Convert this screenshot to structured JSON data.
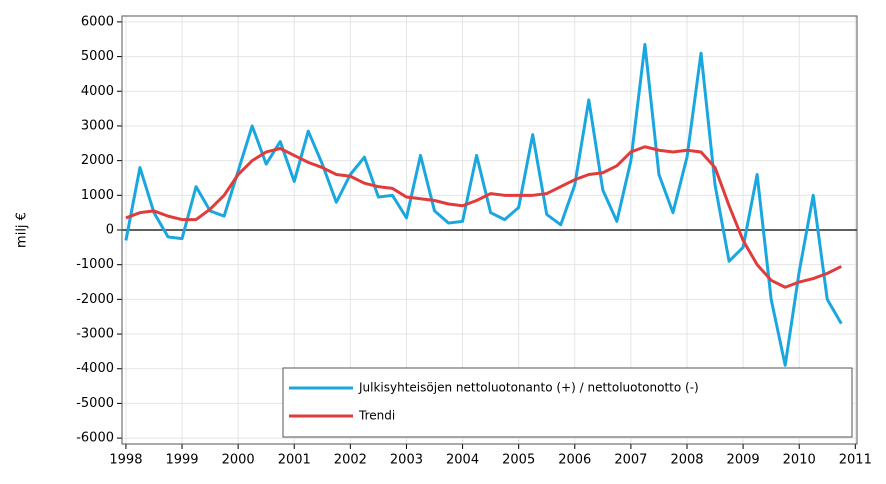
{
  "chart_data": {
    "type": "line",
    "y_label": "milj €",
    "x": [
      1998,
      1998.25,
      1998.5,
      1998.75,
      1999,
      1999.25,
      1999.5,
      1999.75,
      2000,
      2000.25,
      2000.5,
      2000.75,
      2001,
      2001.25,
      2001.5,
      2001.75,
      2002,
      2002.25,
      2002.5,
      2002.75,
      2003,
      2003.25,
      2003.5,
      2003.75,
      2004,
      2004.25,
      2004.5,
      2004.75,
      2005,
      2005.25,
      2005.5,
      2005.75,
      2006,
      2006.25,
      2006.5,
      2006.75,
      2007,
      2007.25,
      2007.5,
      2007.75,
      2008,
      2008.25,
      2008.5,
      2008.75,
      2009,
      2009.25,
      2009.5,
      2009.75,
      2010,
      2010.25,
      2010.5,
      2010.75
    ],
    "series": [
      {
        "name": "Julkisyhteisöjen nettoluotonanto (+) / nettoluotonotto (-)",
        "color": "#1aa7e0",
        "values": [
          -300,
          1800,
          500,
          -200,
          -250,
          1250,
          550,
          400,
          1700,
          3000,
          1900,
          2550,
          1400,
          2850,
          1900,
          800,
          1600,
          2100,
          950,
          1000,
          350,
          2150,
          550,
          200,
          250,
          2150,
          500,
          300,
          650,
          2750,
          450,
          150,
          1300,
          3750,
          1150,
          250,
          2000,
          5350,
          1600,
          500,
          2100,
          5100,
          1300,
          -900,
          -500,
          1600,
          -2000,
          -3900,
          -1200,
          1000,
          -2000,
          -2700
        ]
      },
      {
        "name": "Trendi",
        "color": "#e03c3c",
        "values": [
          350,
          500,
          550,
          400,
          300,
          300,
          600,
          1000,
          1600,
          2000,
          2250,
          2350,
          2150,
          1950,
          1800,
          1600,
          1550,
          1350,
          1250,
          1200,
          950,
          900,
          850,
          750,
          700,
          850,
          1050,
          1000,
          1000,
          1000,
          1050,
          1250,
          1450,
          1600,
          1650,
          1850,
          2250,
          2400,
          2300,
          2250,
          2300,
          2250,
          1800,
          700,
          -300,
          -1000,
          -1450,
          -1650,
          -1500,
          -1400,
          -1250,
          -1050
        ]
      }
    ],
    "xlim": [
      1997.93,
      2011.03
    ],
    "xticks": [
      1998,
      1999,
      2000,
      2001,
      2002,
      2003,
      2004,
      2005,
      2006,
      2007,
      2008,
      2009,
      2010,
      2011
    ],
    "ylim": [
      -6170,
      6170
    ],
    "yticks": [
      -6000,
      -5000,
      -4000,
      -3000,
      -2000,
      -1000,
      0,
      1000,
      2000,
      3000,
      4000,
      5000,
      6000
    ],
    "grid": true,
    "legend": "lower right"
  }
}
